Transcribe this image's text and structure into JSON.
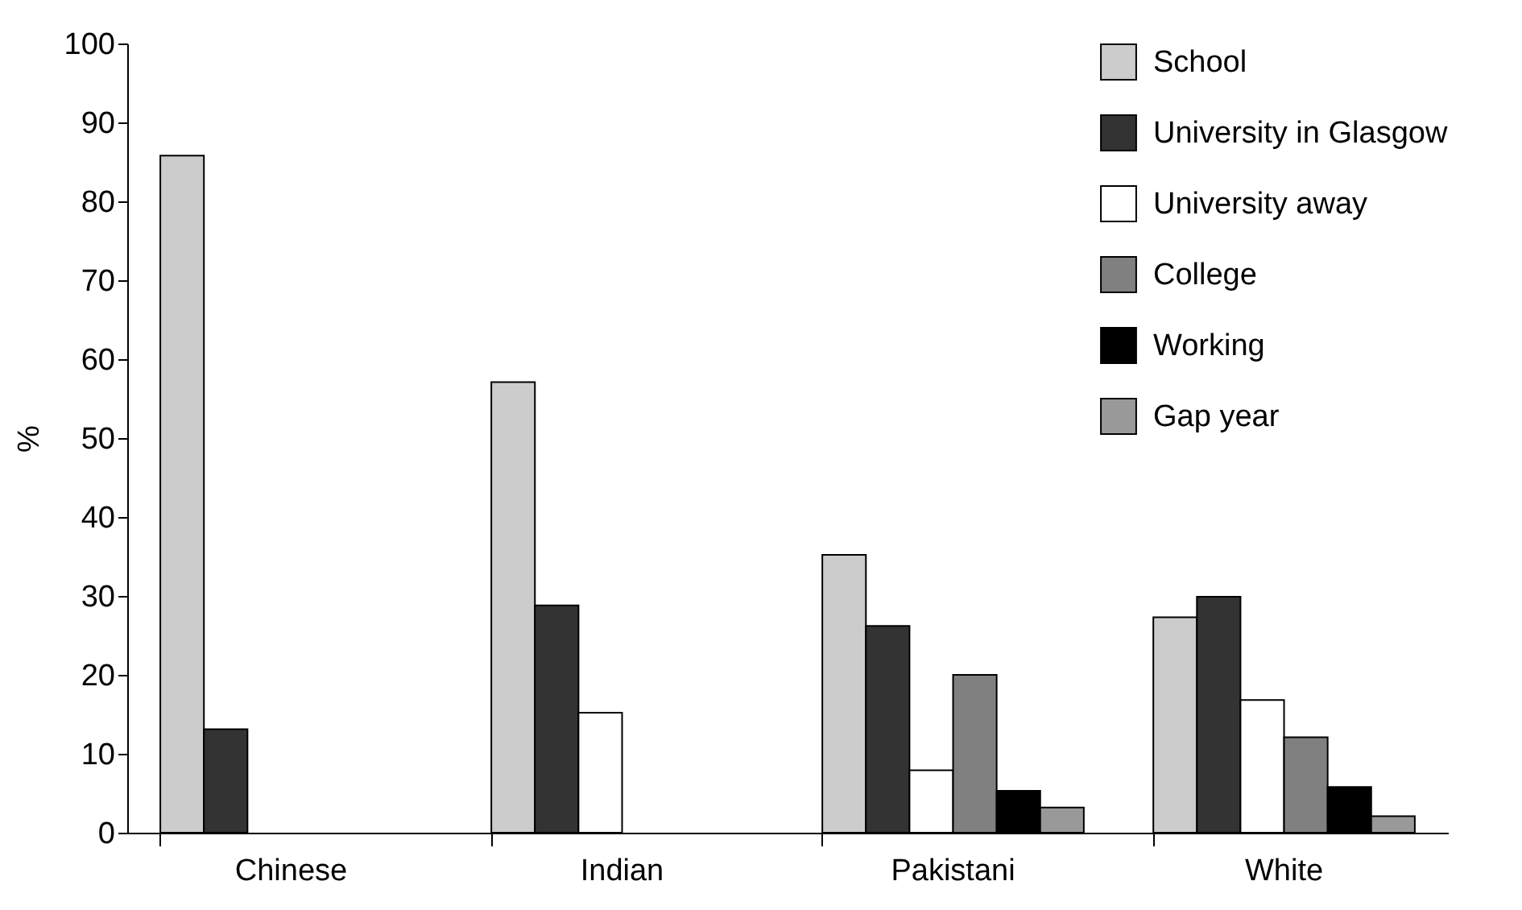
{
  "chart_data": {
    "type": "bar",
    "ylabel": "%",
    "categories": [
      "Chinese",
      "Indian",
      "Pakistani",
      "White"
    ],
    "series": [
      {
        "name": "School",
        "color": "#cccccc",
        "values": [
          85.8,
          57.1,
          35.2,
          27.3
        ]
      },
      {
        "name": "University in Glasgow",
        "color": "#333333",
        "values": [
          13.1,
          28.8,
          26.2,
          29.9
        ]
      },
      {
        "name": "University away",
        "color": "#ffffff",
        "values": [
          null,
          15.2,
          7.9,
          16.8
        ]
      },
      {
        "name": "College",
        "color": "#808080",
        "values": [
          null,
          null,
          20.0,
          12.1
        ]
      },
      {
        "name": "Working",
        "color": "#000000",
        "values": [
          null,
          null,
          5.3,
          5.8
        ]
      },
      {
        "name": "Gap year",
        "color": "#999999",
        "values": [
          null,
          null,
          3.2,
          2.1
        ]
      }
    ],
    "ylim": [
      0,
      100
    ],
    "yticks": [
      0,
      10,
      20,
      30,
      40,
      50,
      60,
      70,
      80,
      90,
      100
    ],
    "grid": false,
    "legend": "top right"
  }
}
